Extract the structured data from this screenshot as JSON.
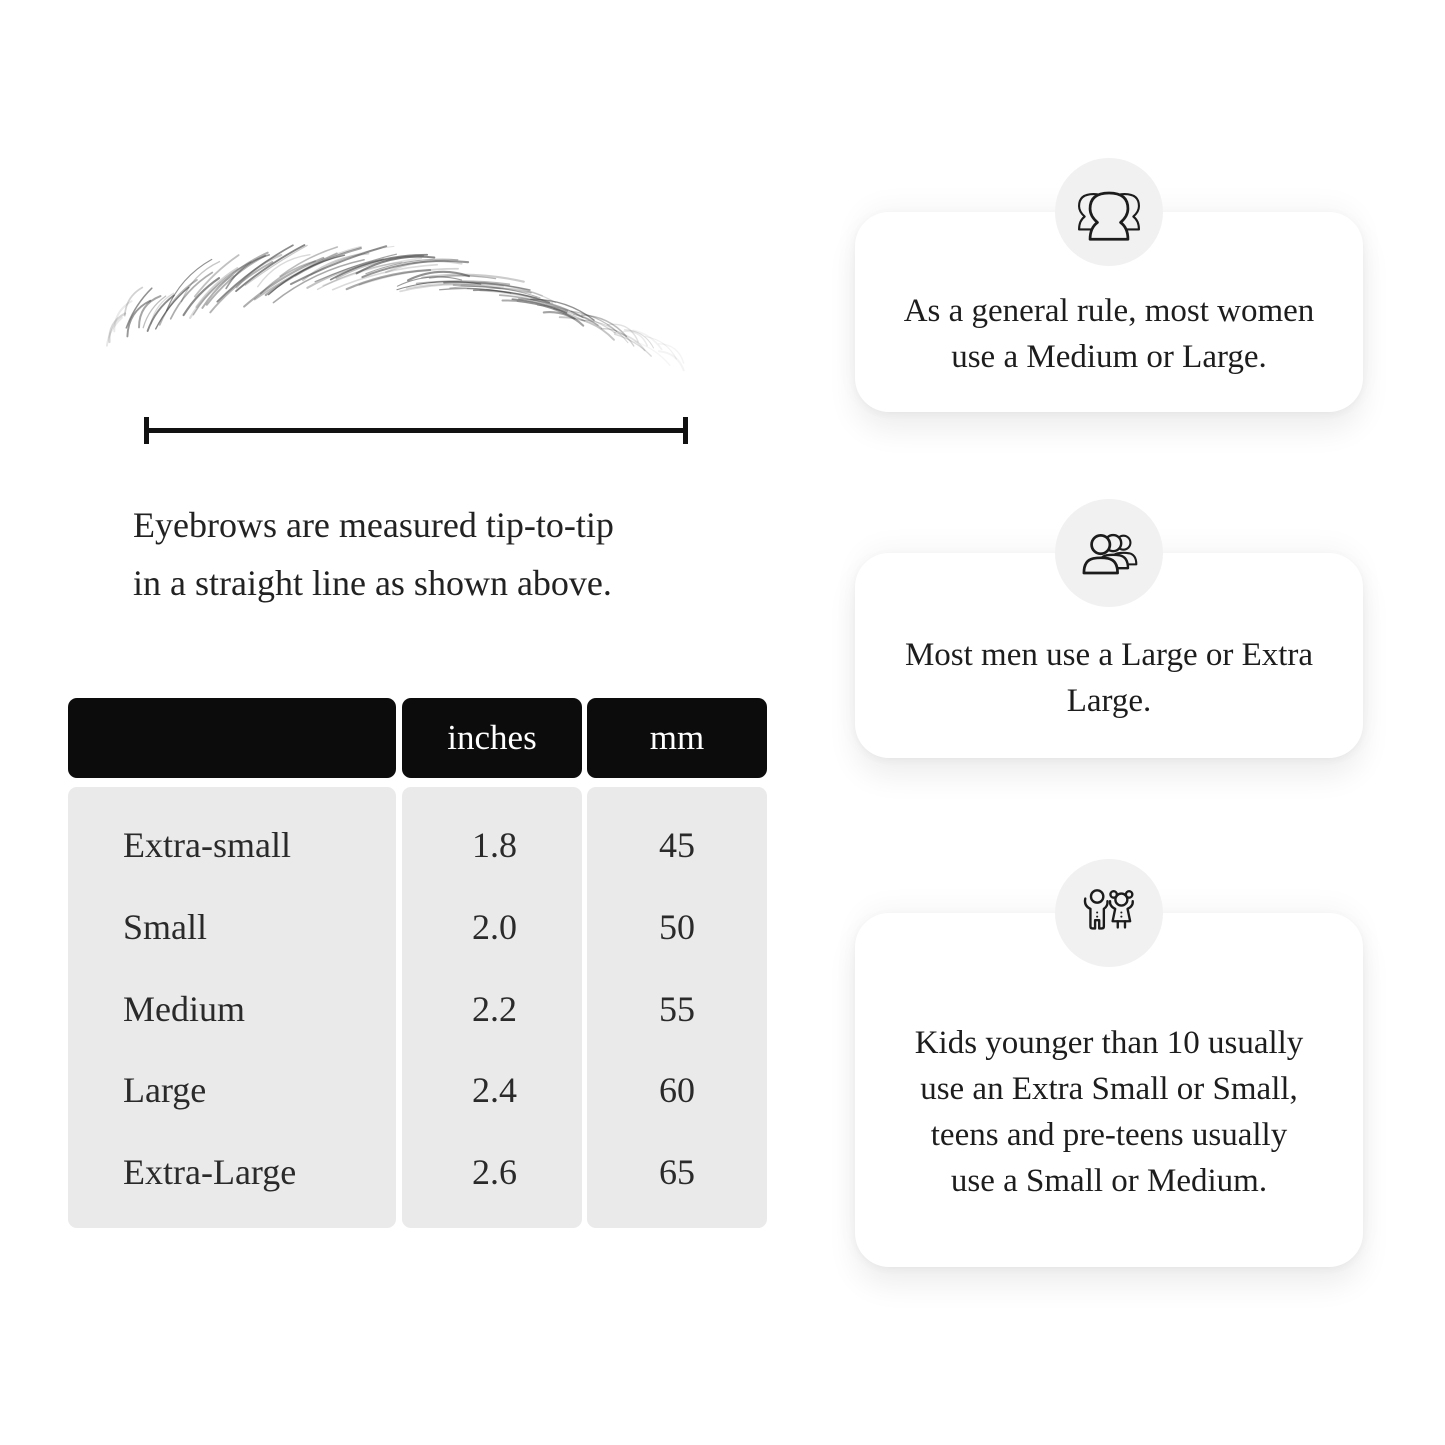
{
  "measurement": {
    "caption_line1": "Eyebrows are measured tip-to-tip",
    "caption_line2": "in a straight line as shown above."
  },
  "size_table": {
    "headers": [
      "",
      "inches",
      "mm"
    ],
    "rows": [
      {
        "label": "Extra-small",
        "inches": "1.8",
        "mm": "45"
      },
      {
        "label": "Small",
        "inches": "2.0",
        "mm": "50"
      },
      {
        "label": "Medium",
        "inches": "2.2",
        "mm": "55"
      },
      {
        "label": "Large",
        "inches": "2.4",
        "mm": "60"
      },
      {
        "label": "Extra-Large",
        "inches": "2.6",
        "mm": "65"
      }
    ]
  },
  "info_cards": [
    {
      "icon": "women-group-icon",
      "text": "As a general rule, most women use a Medium or Large."
    },
    {
      "icon": "men-group-icon",
      "text": "Most men use a Large or Extra Large."
    },
    {
      "icon": "kids-icon",
      "text": "Kids younger than 10 usually use an Extra Small or Small, teens and pre-teens usually use a Small or Medium."
    }
  ],
  "colors": {
    "page_bg": "#ffffff",
    "table_header_bg": "#0c0c0c",
    "table_header_text": "#ffffff",
    "table_body_bg": "#eaeaea",
    "text": "#1f1f1f",
    "card_bg": "#ffffff",
    "icon_circle_bg": "#f1f1f1",
    "line": "#111111"
  }
}
